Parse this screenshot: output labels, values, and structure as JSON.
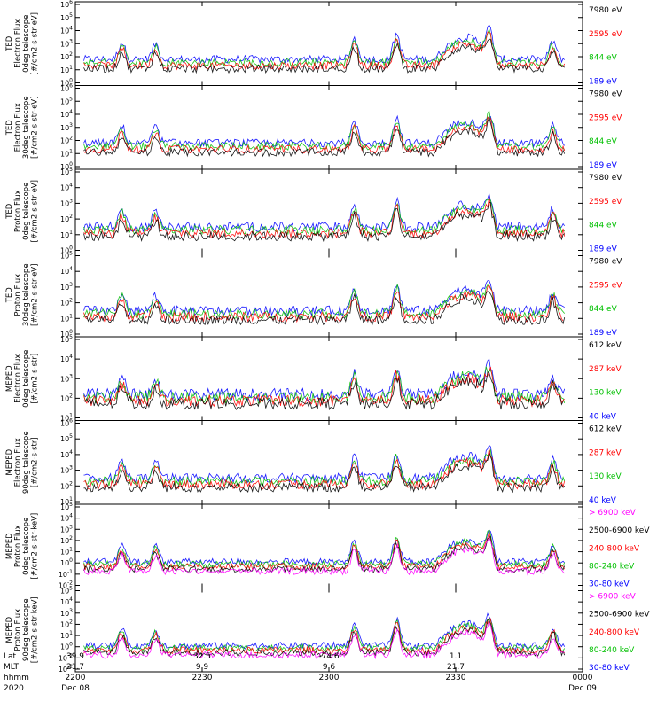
{
  "chart_data": {
    "type": "line",
    "panels": [
      {
        "ylabel_lines": [
          "TED",
          "Electron Flux",
          "0deg telescope",
          "[#/cm2-s-str-eV]"
        ],
        "yexp": [
          0,
          6
        ],
        "energies": [
          {
            "label": "7980 eV",
            "color": "#000000"
          },
          {
            "label": "2595 eV",
            "color": "#ff0000"
          },
          {
            "label": "844 eV",
            "color": "#00c000"
          },
          {
            "label": "189 eV",
            "color": "#0000ff"
          }
        ]
      },
      {
        "ylabel_lines": [
          "TED",
          "Electron Flux",
          "30deg telescope",
          "[#/cm2-s-str-eV]"
        ],
        "yexp": [
          0,
          6
        ],
        "energies": [
          {
            "label": "7980 eV",
            "color": "#000000"
          },
          {
            "label": "2595 eV",
            "color": "#ff0000"
          },
          {
            "label": "844 eV",
            "color": "#00c000"
          },
          {
            "label": "189 eV",
            "color": "#0000ff"
          }
        ]
      },
      {
        "ylabel_lines": [
          "TED",
          "Proton Flux",
          "0deg telescope",
          "[#/cm2-s-str-eV]"
        ],
        "yexp": [
          0,
          5
        ],
        "energies": [
          {
            "label": "7980 eV",
            "color": "#000000"
          },
          {
            "label": "2595 eV",
            "color": "#ff0000"
          },
          {
            "label": "844 eV",
            "color": "#00c000"
          },
          {
            "label": "189 eV",
            "color": "#0000ff"
          }
        ]
      },
      {
        "ylabel_lines": [
          "TED",
          "Proton Flux",
          "30deg telescope",
          "[#/cm2-s-str-eV]"
        ],
        "yexp": [
          0,
          5
        ],
        "energies": [
          {
            "label": "7980 eV",
            "color": "#000000"
          },
          {
            "label": "2595 eV",
            "color": "#ff0000"
          },
          {
            "label": "844 eV",
            "color": "#00c000"
          },
          {
            "label": "189 eV",
            "color": "#0000ff"
          }
        ]
      },
      {
        "ylabel_lines": [
          "MEPED",
          "Electron Flux",
          "0deg telescope",
          "[#/cm2-s-str]"
        ],
        "yexp": [
          1,
          5
        ],
        "energies": [
          {
            "label": "612 keV",
            "color": "#000000"
          },
          {
            "label": "287 keV",
            "color": "#ff0000"
          },
          {
            "label": "130 keV",
            "color": "#00c000"
          },
          {
            "label": "40 keV",
            "color": "#0000ff"
          }
        ]
      },
      {
        "ylabel_lines": [
          "MEPED",
          "Electron Flux",
          "90deg telescope",
          "[#/cm2-s-str]"
        ],
        "yexp": [
          1,
          6
        ],
        "energies": [
          {
            "label": "612 keV",
            "color": "#000000"
          },
          {
            "label": "287 keV",
            "color": "#ff0000"
          },
          {
            "label": "130 keV",
            "color": "#00c000"
          },
          {
            "label": "40 keV",
            "color": "#0000ff"
          }
        ]
      },
      {
        "ylabel_lines": [
          "MEPED",
          "Proton Flux",
          "0deg telescope",
          "[#/cm2-s-str-keV]"
        ],
        "yexp": [
          -2,
          5
        ],
        "energies": [
          {
            "label": "> 6900 keV",
            "color": "#ff00ff"
          },
          {
            "label": "2500-6900 keV",
            "color": "#000000"
          },
          {
            "label": "240-800 keV",
            "color": "#ff0000"
          },
          {
            "label": "80-240 keV",
            "color": "#00c000"
          },
          {
            "label": "30-80 keV",
            "color": "#0000ff"
          }
        ]
      },
      {
        "ylabel_lines": [
          "MEPED",
          "Proton Flux",
          "90deg telescope",
          "[#/cm2-s-str-keV]"
        ],
        "yexp": [
          -2,
          5
        ],
        "energies": [
          {
            "label": "> 6900 keV",
            "color": "#ff00ff"
          },
          {
            "label": "2500-6900 keV",
            "color": "#000000"
          },
          {
            "label": "240-800 keV",
            "color": "#ff0000"
          },
          {
            "label": "80-240 keV",
            "color": "#00c000"
          },
          {
            "label": "30-80 keV",
            "color": "#0000ff"
          }
        ]
      }
    ],
    "x_axis": {
      "row_labels": [
        "Lat",
        "MLT",
        "hhmm",
        "2020"
      ],
      "ticks": [
        {
          "t": 0,
          "lat": "39.9",
          "mlt": "21.7",
          "hhmm": "2200",
          "date": "Dec 08"
        },
        {
          "t": 30,
          "lat": "32.5",
          "mlt": "9.9",
          "hhmm": "2230",
          "date": ""
        },
        {
          "t": 60,
          "lat": "-74.6",
          "mlt": "9.6",
          "hhmm": "2300",
          "date": ""
        },
        {
          "t": 90,
          "lat": "1.1",
          "mlt": "21.7",
          "hhmm": "2330",
          "date": ""
        },
        {
          "t": 120,
          "lat": "",
          "mlt": "",
          "hhmm": "0000",
          "date": "Dec 09"
        }
      ]
    }
  }
}
